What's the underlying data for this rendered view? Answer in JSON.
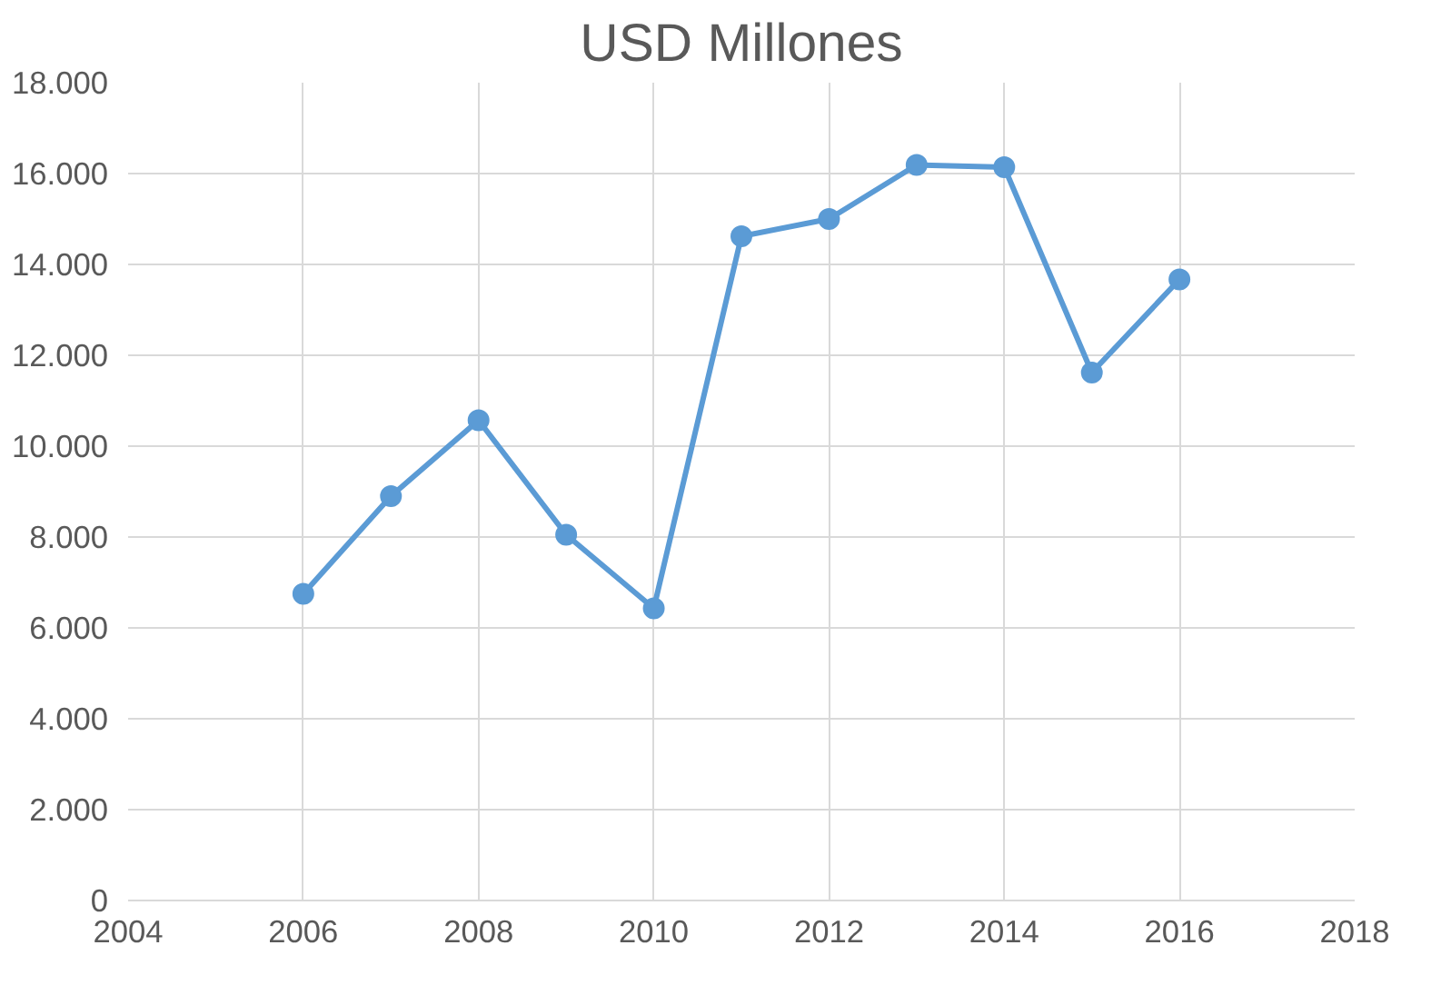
{
  "chart_data": {
    "type": "line",
    "title": "USD Millones",
    "x": [
      2006,
      2007,
      2008,
      2009,
      2010,
      2011,
      2012,
      2013,
      2014,
      2015,
      2016
    ],
    "series": [
      {
        "color": "#5b9bd5",
        "values": [
          6750,
          8900,
          10570,
          8050,
          6430,
          14620,
          15000,
          16190,
          16140,
          11620,
          13670
        ]
      }
    ],
    "xlim": [
      2004,
      2018
    ],
    "xticks": [
      2004,
      2006,
      2008,
      2010,
      2012,
      2014,
      2016,
      2018
    ],
    "ylim": [
      0,
      18000
    ],
    "yticks": [
      {
        "value": 0,
        "label": "0"
      },
      {
        "value": 2000,
        "label": "2.000"
      },
      {
        "value": 4000,
        "label": "4.000"
      },
      {
        "value": 6000,
        "label": "6.000"
      },
      {
        "value": 8000,
        "label": "8.000"
      },
      {
        "value": 10000,
        "label": "10.000"
      },
      {
        "value": 12000,
        "label": "12.000"
      },
      {
        "value": 14000,
        "label": "14.000"
      },
      {
        "value": 16000,
        "label": "16.000"
      },
      {
        "value": 18000,
        "label": "18.000"
      }
    ],
    "grid": true,
    "marker": "circle",
    "line_style": "solid"
  }
}
